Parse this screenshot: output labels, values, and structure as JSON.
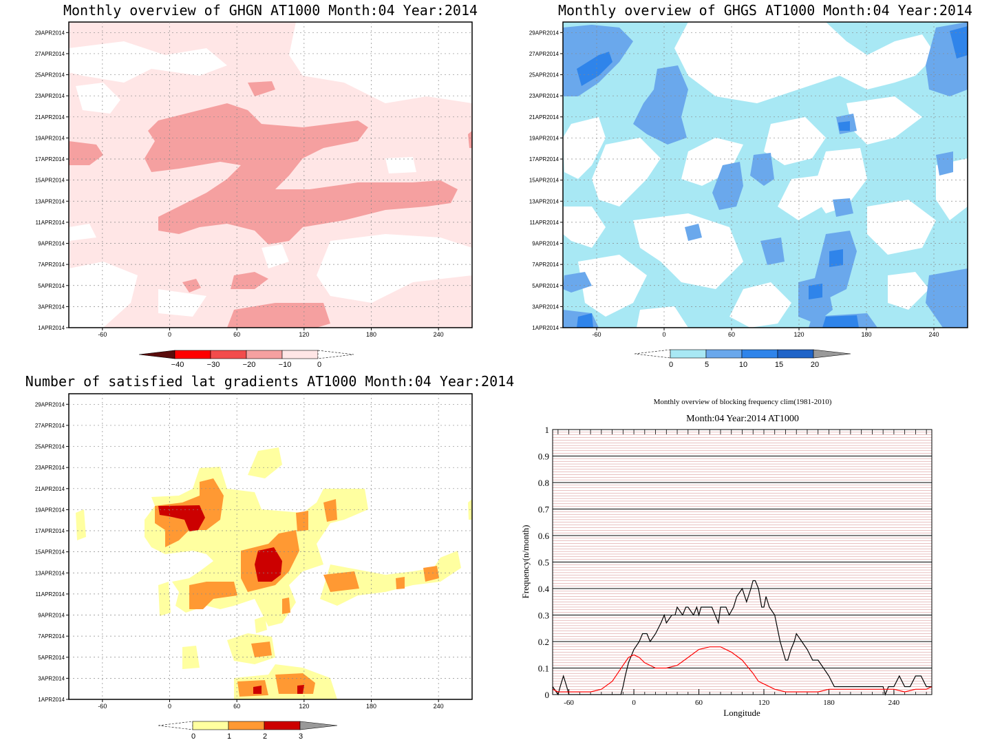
{
  "colors": {
    "ghgn": [
      "#5a0c0c",
      "#ff0000",
      "#f24c4c",
      "#f5a0a0",
      "#ffe6e6"
    ],
    "ghgs": [
      "#c8f0f8",
      "#a8e8f4",
      "#6aa8ec",
      "#2f84ea",
      "#1f64c8"
    ],
    "lat": [
      "#ffffa0",
      "#ff9933",
      "#cc0000"
    ],
    "clim_line": "#ff0000",
    "obs_line": "#000000",
    "freq_grid": "#c86464"
  },
  "panels": {
    "ghgn": {
      "title": "Monthly overview of GHGN AT1000 Month:04 Year:2014",
      "colorbar_labels": [
        "−40",
        "−30",
        "−20",
        "−10",
        "0"
      ]
    },
    "ghgs": {
      "title": "Monthly overview of GHGS AT1000 Month:04 Year:2014",
      "colorbar_labels": [
        "0",
        "5",
        "10",
        "15",
        "20"
      ]
    },
    "lat": {
      "title": "Number of satisfied lat gradients AT1000 Month:04 Year:2014",
      "colorbar_labels": [
        "0",
        "1",
        "2",
        "3"
      ]
    }
  },
  "axes": {
    "y_dates": [
      "1APR2014",
      "3APR2014",
      "5APR2014",
      "7APR2014",
      "9APR2014",
      "11APR2014",
      "13APR2014",
      "15APR2014",
      "17APR2014",
      "19APR2014",
      "21APR2014",
      "23APR2014",
      "25APR2014",
      "27APR2014",
      "29APR2014"
    ],
    "x_lon": [
      "-60",
      "0",
      "60",
      "120",
      "180",
      "240"
    ]
  },
  "chart_data": [
    {
      "type": "heatmap",
      "title": "Monthly overview of GHGN AT1000 Month:04 Year:2014",
      "x_range": [
        -90,
        270
      ],
      "y_range": [
        "1APR2014",
        "30APR2014"
      ],
      "levels": [
        -40,
        -30,
        -20,
        -10,
        0
      ],
      "regions": [
        {
          "level": -10,
          "name_hint": "",
          "band_days": [
            8,
            21
          ],
          "lon": [
            -90,
            270
          ]
        },
        {
          "level": -20,
          "lon_days": [
            [
              -30,
              150,
              13,
              21
            ],
            [
              0,
              260,
              11,
              15
            ]
          ]
        }
      ]
    },
    {
      "type": "heatmap",
      "title": "Monthly overview of GHGS AT1000 Month:04 Year:2014",
      "x_range": [
        -90,
        270
      ],
      "y_range": [
        "1APR2014",
        "30APR2014"
      ],
      "levels": [
        0,
        5,
        10,
        15,
        20
      ]
    },
    {
      "type": "heatmap",
      "title": "Number of satisfied lat gradients AT1000 Month:04 Year:2014",
      "x_range": [
        -90,
        270
      ],
      "y_range": [
        "1APR2014",
        "30APR2014"
      ],
      "levels": [
        0,
        1,
        2,
        3
      ]
    },
    {
      "type": "line",
      "title": "Monthly overview of blocking frequency clim(1981-2010)",
      "subtitle": "Month:04 Year:2014  AT1000",
      "xlabel": "Longitude",
      "ylabel": "Frequency(n/month)",
      "xlim": [
        -75,
        275
      ],
      "ylim": [
        0,
        1
      ],
      "x_ticks": [
        -60,
        0,
        60,
        120,
        180,
        240
      ],
      "y_ticks": [
        0,
        0.1,
        0.2,
        0.3,
        0.4,
        0.5,
        0.6,
        0.7,
        0.8,
        0.9,
        1
      ],
      "series": [
        {
          "color": "#000000",
          "x": [
            -75,
            -70,
            -68,
            -65,
            -62,
            -60,
            -55,
            -40,
            -20,
            -12,
            -10,
            -8,
            -5,
            0,
            5,
            8,
            12,
            15,
            20,
            25,
            28,
            30,
            35,
            38,
            40,
            45,
            48,
            50,
            55,
            58,
            60,
            62,
            66,
            70,
            72,
            75,
            78,
            80,
            85,
            88,
            92,
            95,
            100,
            104,
            108,
            110,
            112,
            115,
            118,
            120,
            122,
            125,
            130,
            135,
            140,
            142,
            145,
            148,
            150,
            155,
            160,
            165,
            170,
            175,
            180,
            185,
            190,
            200,
            210,
            220,
            230,
            232,
            235,
            240,
            245,
            250,
            252,
            255,
            260,
            265,
            270,
            275
          ],
          "y": [
            0.03,
            0.0,
            0.03,
            0.07,
            0.03,
            0.0,
            0.0,
            0.0,
            0.0,
            0.0,
            0.03,
            0.07,
            0.12,
            0.17,
            0.2,
            0.23,
            0.23,
            0.2,
            0.23,
            0.27,
            0.3,
            0.27,
            0.3,
            0.3,
            0.33,
            0.3,
            0.33,
            0.33,
            0.3,
            0.33,
            0.3,
            0.33,
            0.33,
            0.33,
            0.33,
            0.3,
            0.27,
            0.33,
            0.33,
            0.3,
            0.33,
            0.37,
            0.4,
            0.35,
            0.4,
            0.43,
            0.43,
            0.4,
            0.33,
            0.33,
            0.37,
            0.33,
            0.3,
            0.2,
            0.13,
            0.13,
            0.17,
            0.2,
            0.23,
            0.2,
            0.17,
            0.13,
            0.13,
            0.1,
            0.07,
            0.03,
            0.03,
            0.03,
            0.03,
            0.03,
            0.03,
            0.0,
            0.03,
            0.03,
            0.07,
            0.03,
            0.03,
            0.03,
            0.07,
            0.07,
            0.03,
            0.03
          ]
        },
        {
          "color": "#ff0000",
          "x": [
            -75,
            -70,
            -60,
            -50,
            -40,
            -30,
            -20,
            -15,
            -10,
            -5,
            0,
            5,
            10,
            20,
            30,
            40,
            50,
            60,
            70,
            80,
            90,
            100,
            110,
            115,
            120,
            130,
            140,
            150,
            160,
            170,
            180,
            190,
            200,
            210,
            220,
            230,
            240,
            250,
            260,
            270,
            275
          ],
          "y": [
            0.02,
            0.01,
            0.01,
            0.01,
            0.01,
            0.02,
            0.05,
            0.08,
            0.11,
            0.14,
            0.15,
            0.14,
            0.12,
            0.1,
            0.1,
            0.11,
            0.14,
            0.17,
            0.18,
            0.18,
            0.16,
            0.13,
            0.08,
            0.05,
            0.04,
            0.02,
            0.01,
            0.01,
            0.01,
            0.01,
            0.02,
            0.02,
            0.02,
            0.02,
            0.02,
            0.02,
            0.02,
            0.01,
            0.02,
            0.02,
            0.03
          ]
        }
      ]
    }
  ]
}
